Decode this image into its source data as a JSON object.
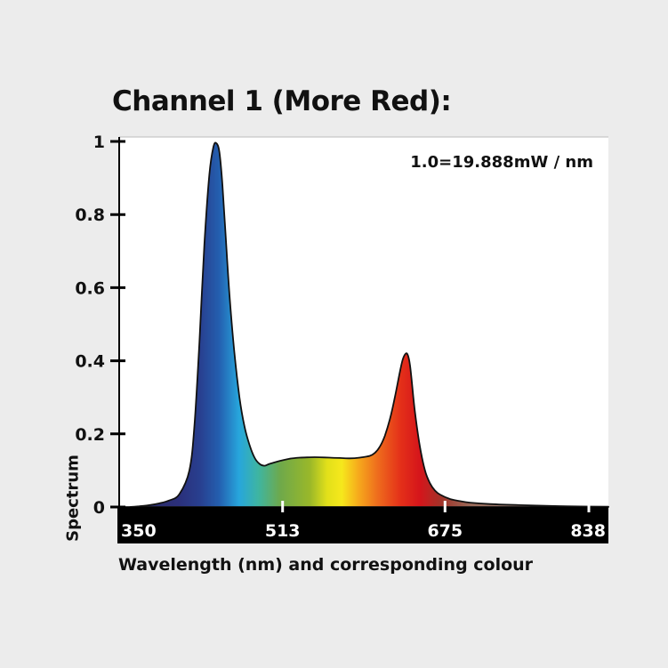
{
  "chart_data": {
    "type": "area",
    "title": "Channel 1 (More Red):",
    "annotation": "1.0=19.888mW / nm",
    "xlabel": "Wavelength (nm) and corresponding colour",
    "ylabel": "Spectrum",
    "xlim": [
      350,
      838
    ],
    "ylim": [
      0,
      1
    ],
    "x_ticks": [
      350,
      513,
      675,
      838
    ],
    "y_ticks": [
      0,
      0.2,
      0.4,
      0.6,
      0.8,
      1
    ],
    "y_tick_labels": [
      "0",
      "0.2",
      "0.4",
      "0.6",
      "0.8",
      "1"
    ],
    "grid": false,
    "fill": "wavelength-colour gradient",
    "series": [
      {
        "x": [
          350,
          360,
          370,
          380,
          390,
          400,
          410,
          420,
          425,
          430,
          435,
          440,
          444,
          447,
          450,
          453,
          456,
          460,
          465,
          470,
          475,
          480,
          485,
          490,
          495,
          500,
          510,
          520,
          530,
          540,
          550,
          560,
          570,
          580,
          590,
          600,
          605,
          610,
          615,
          620,
          625,
          630,
          633,
          636,
          638,
          640,
          642,
          645,
          650,
          655,
          660,
          665,
          670,
          680,
          690,
          700,
          720,
          750,
          780,
          810,
          838
        ],
        "y": [
          0.0,
          0.0,
          0.002,
          0.005,
          0.01,
          0.018,
          0.035,
          0.1,
          0.22,
          0.45,
          0.72,
          0.91,
          0.985,
          0.995,
          0.97,
          0.88,
          0.75,
          0.58,
          0.42,
          0.3,
          0.22,
          0.17,
          0.135,
          0.118,
          0.113,
          0.118,
          0.126,
          0.132,
          0.135,
          0.136,
          0.136,
          0.135,
          0.134,
          0.133,
          0.135,
          0.14,
          0.148,
          0.165,
          0.195,
          0.24,
          0.3,
          0.37,
          0.405,
          0.42,
          0.415,
          0.39,
          0.34,
          0.26,
          0.165,
          0.1,
          0.065,
          0.045,
          0.034,
          0.022,
          0.016,
          0.012,
          0.008,
          0.005,
          0.003,
          0.0015,
          0.001
        ]
      }
    ]
  }
}
